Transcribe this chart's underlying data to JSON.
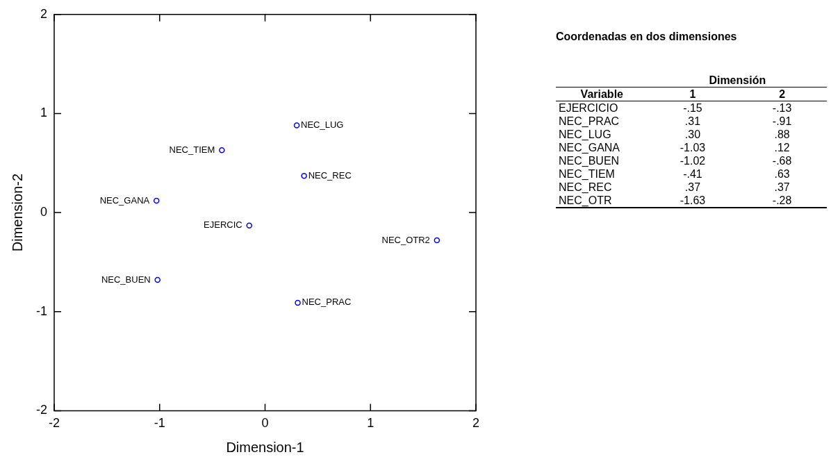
{
  "chart_data": [
    {
      "type": "scatter",
      "xlabel": "Dimension-1",
      "ylabel": "Dimension-2",
      "x": [
        0.3,
        -0.41,
        0.37,
        -1.03,
        -0.15,
        1.63,
        -1.02,
        0.31
      ],
      "values": [
        0.88,
        0.63,
        0.37,
        0.12,
        -0.13,
        -0.28,
        -0.68,
        -0.91
      ],
      "color": "#0000ff",
      "marker": "circle",
      "xlim": [
        -2,
        2
      ],
      "xticks": [
        -2,
        -1,
        0,
        1,
        2
      ],
      "ylim": [
        -2,
        2
      ],
      "yticks": [
        -2,
        -1,
        0,
        1,
        2
      ],
      "grid": false,
      "legend": false,
      "annotations": [
        {
          "text": "NEC_LUG",
          "x": 0.3,
          "y": 0.88
        },
        {
          "text": "NEC_TIEM",
          "x": -0.41,
          "y": 0.63
        },
        {
          "text": "NEC_REC",
          "x": 0.37,
          "y": 0.37
        },
        {
          "text": "NEC_GANA",
          "x": -1.03,
          "y": 0.12
        },
        {
          "text": "EJERCIC",
          "x": -0.15,
          "y": -0.13
        },
        {
          "text": "NEC_OTR2",
          "x": 1.63,
          "y": -0.28
        },
        {
          "text": "NEC_BUEN",
          "x": -1.02,
          "y": -0.68
        },
        {
          "text": "NEC_PRAC",
          "x": 0.31,
          "y": -0.91
        }
      ]
    },
    {
      "type": "other",
      "title": "Coordenadas en dos dimensiones",
      "annotations": [
        "Dimensión",
        "Variable",
        "1",
        "2",
        "EJERCICIO",
        "-.15",
        "-.13",
        "NEC_PRAC",
        ".31",
        "-.91",
        "NEC_LUG",
        ".30",
        ".88",
        "NEC_GANA",
        "-1.03",
        ".12",
        "NEC_BUEN",
        "-1.02",
        "-.68",
        "NEC_TIEM",
        "-.41",
        ".63",
        "NEC_REC",
        ".37",
        ".37",
        "NEC_OTR",
        "-1.63",
        "-.28"
      ]
    }
  ]
}
